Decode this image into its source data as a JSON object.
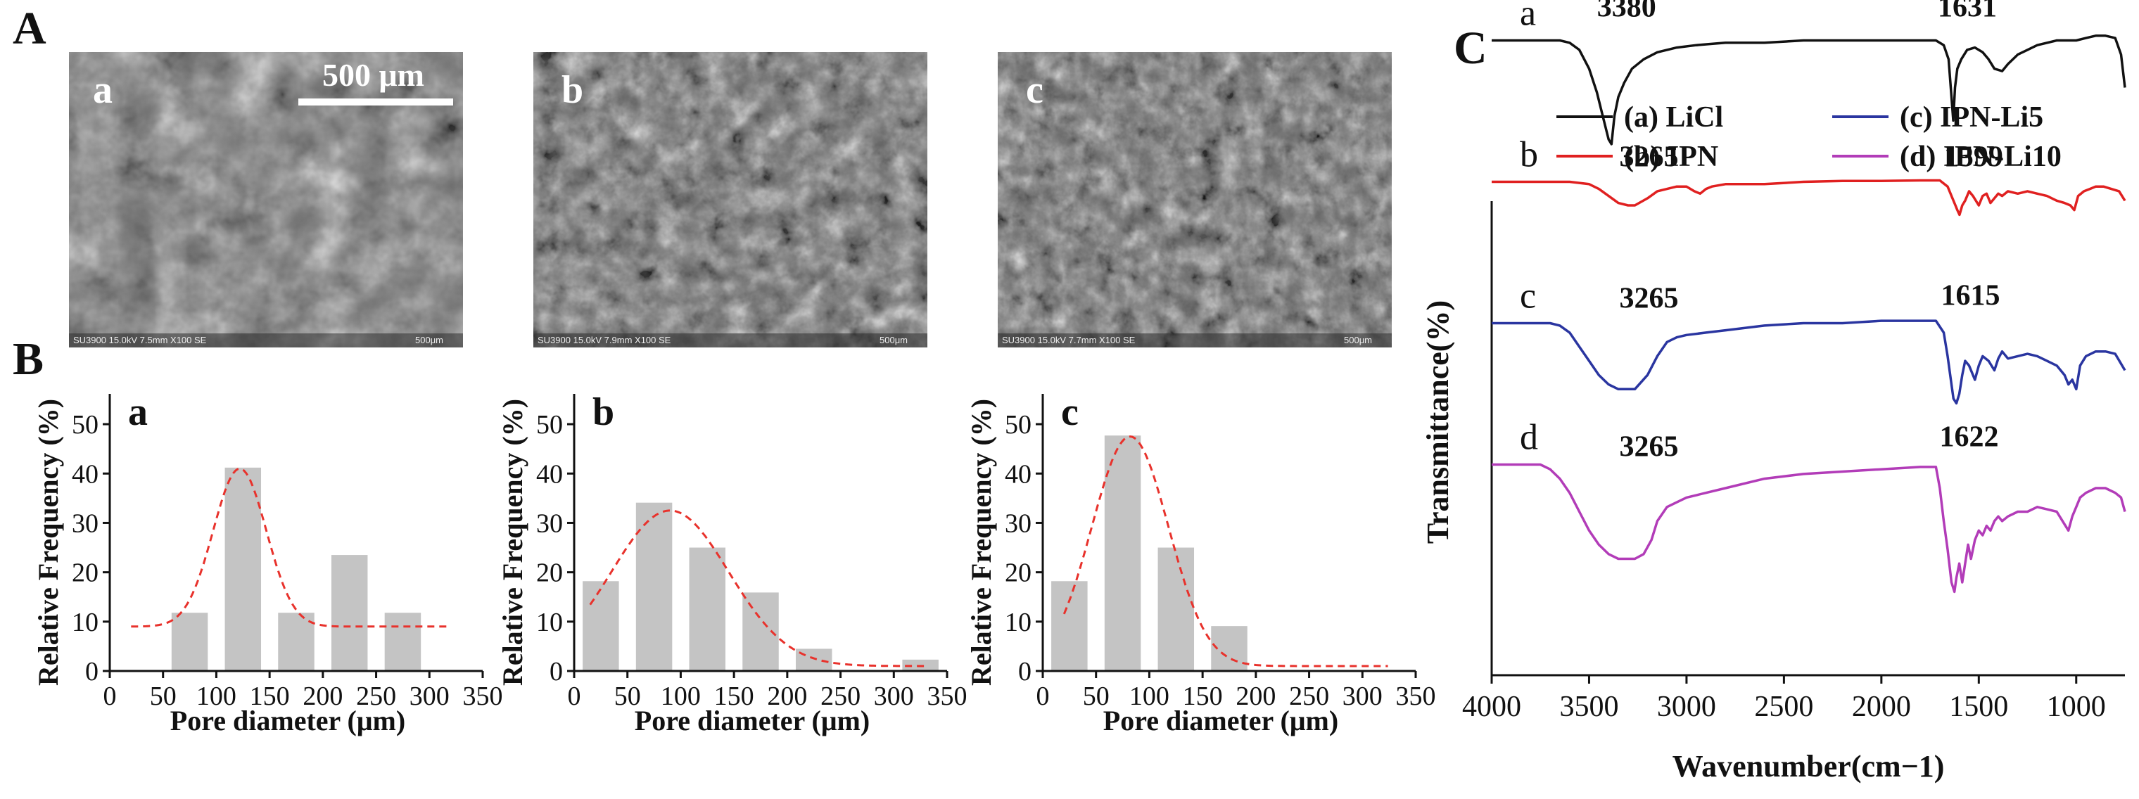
{
  "figure": {
    "panel_A_label": "A",
    "panel_B_label": "B",
    "panel_C_label": "C"
  },
  "sem_images": [
    {
      "letter": "a",
      "info": "SU3900 15.0kV 7.5mm X100 SE",
      "scale_text": "500μm"
    },
    {
      "letter": "b",
      "info": "SU3900 15.0kV 7.9mm X100 SE",
      "scale_text": "500μm"
    },
    {
      "letter": "c",
      "info": "SU3900 15.0kV 7.7mm X100 SE",
      "scale_text": "500μm"
    }
  ],
  "scale_bar_label": "500 μm",
  "colors": {
    "bar": "#c4c4c4",
    "fit": "#e8322c",
    "LiCl": "#111111",
    "IPN": "#e02020",
    "IPN-Li5": "#2a35a0",
    "IPN-Li10": "#b23cb8",
    "sem_bg": "#6f6f6f"
  },
  "chart_data": [
    {
      "type": "bar",
      "panel": "B-a",
      "letter": "a",
      "xlabel": "Pore diameter (μm)",
      "ylabel": "Relative Frequency (%)",
      "xlim": [
        0,
        350
      ],
      "ylim": [
        0,
        55
      ],
      "xticks": [
        0,
        50,
        100,
        150,
        200,
        250,
        300,
        350
      ],
      "yticks": [
        0,
        10,
        20,
        30,
        40,
        50
      ],
      "bin_width": 40,
      "x": [
        75,
        125,
        175,
        225,
        275
      ],
      "values": [
        11.8,
        41.2,
        11.8,
        23.5,
        11.8
      ],
      "fit": {
        "type": "gaussian",
        "baseline": 9,
        "amplitude": 32,
        "center": 122,
        "sigma": 25,
        "x_range": [
          20,
          320
        ]
      }
    },
    {
      "type": "bar",
      "panel": "B-b",
      "letter": "b",
      "xlabel": "Pore diameter (μm)",
      "ylabel": "Relative Frequency (%)",
      "xlim": [
        0,
        350
      ],
      "ylim": [
        0,
        55
      ],
      "xticks": [
        0,
        50,
        100,
        150,
        200,
        250,
        300,
        350
      ],
      "yticks": [
        0,
        10,
        20,
        30,
        40,
        50
      ],
      "bin_width": 40,
      "x": [
        25,
        75,
        125,
        175,
        225,
        325
      ],
      "values": [
        18.2,
        34.1,
        25.0,
        15.9,
        4.5,
        2.3
      ],
      "fit": {
        "type": "gaussian",
        "baseline": 1,
        "amplitude": 31.5,
        "center": 90,
        "sigma": 55,
        "x_range": [
          15,
          330
        ]
      }
    },
    {
      "type": "bar",
      "panel": "B-c",
      "letter": "c",
      "xlabel": "Pore diameter (μm)",
      "ylabel": "Relative Frequency (%)",
      "xlim": [
        0,
        350
      ],
      "ylim": [
        0,
        55
      ],
      "xticks": [
        0,
        50,
        100,
        150,
        200,
        250,
        300,
        350
      ],
      "yticks": [
        0,
        10,
        20,
        30,
        40,
        50
      ],
      "bin_width": 40,
      "x": [
        25,
        75,
        125,
        175
      ],
      "values": [
        18.2,
        47.7,
        25.0,
        9.1
      ],
      "fit": {
        "type": "gaussian",
        "baseline": 1,
        "amplitude": 46.5,
        "center": 82,
        "sigma": 36,
        "x_range": [
          20,
          325
        ]
      }
    },
    {
      "type": "line",
      "panel": "C",
      "xlabel": "Wavenumber(cm−1)",
      "ylabel": "Transmittance(%)",
      "xlim": [
        4000,
        750
      ],
      "xticks": [
        4000,
        3500,
        3000,
        2500,
        2000,
        1500,
        1000
      ],
      "legend_position": "top",
      "series": [
        {
          "name": "(a) LiCl",
          "letter": "a",
          "color_key": "LiCl",
          "offset": 75,
          "x": [
            4000,
            3750,
            3650,
            3600,
            3550,
            3500,
            3460,
            3430,
            3400,
            3385,
            3370,
            3350,
            3320,
            3280,
            3220,
            3150,
            3050,
            2950,
            2800,
            2600,
            2400,
            2200,
            2000,
            1800,
            1720,
            1680,
            1655,
            1640,
            1631,
            1622,
            1610,
            1590,
            1560,
            1520,
            1480,
            1450,
            1420,
            1380,
            1350,
            1300,
            1250,
            1200,
            1100,
            1000,
            950,
            900,
            850,
            800,
            770,
            750
          ],
          "y": [
            0,
            0,
            0,
            -0.5,
            -2,
            -6,
            -11,
            -16,
            -21,
            -22,
            -16,
            -12,
            -9,
            -6,
            -4,
            -2.5,
            -1.5,
            -1,
            -0.5,
            -0.5,
            0,
            0,
            0,
            0,
            0,
            -1,
            -4,
            -12,
            -17,
            -10,
            -6,
            -4,
            -2,
            -1.5,
            -2.5,
            -4,
            -6,
            -6.5,
            -5,
            -3,
            -2,
            -1,
            0,
            0,
            0.5,
            1,
            1,
            0.5,
            -3,
            -10
          ]
        },
        {
          "name": "(b) IPN",
          "letter": "b",
          "color_key": "IPN",
          "offset": 45,
          "x": [
            4000,
            3800,
            3700,
            3600,
            3500,
            3450,
            3400,
            3350,
            3300,
            3265,
            3200,
            3150,
            3100,
            3050,
            3000,
            2960,
            2930,
            2900,
            2870,
            2800,
            2600,
            2400,
            2200,
            2000,
            1800,
            1700,
            1660,
            1640,
            1620,
            1610,
            1599,
            1585,
            1570,
            1550,
            1530,
            1500,
            1480,
            1460,
            1440,
            1420,
            1400,
            1380,
            1350,
            1300,
            1250,
            1200,
            1150,
            1100,
            1060,
            1030,
            1010,
            990,
            960,
            930,
            900,
            860,
            820,
            780,
            750
          ],
          "y": [
            0,
            0,
            0,
            0,
            -0.5,
            -1.5,
            -3,
            -4.5,
            -5,
            -5,
            -3.5,
            -2,
            -1.5,
            -1,
            -1,
            -2,
            -2.5,
            -1.5,
            -1,
            -0.5,
            -0.5,
            0,
            0.2,
            0.2,
            0.3,
            0.3,
            -1,
            -3,
            -5,
            -6,
            -7,
            -5,
            -4,
            -2,
            -3,
            -5,
            -3,
            -2.5,
            -4.5,
            -3.5,
            -2.5,
            -3,
            -2,
            -2.5,
            -2,
            -2.5,
            -3,
            -4,
            -4.5,
            -5,
            -6,
            -3,
            -2,
            -1.5,
            -1,
            -1,
            -1.5,
            -2,
            -4
          ]
        },
        {
          "name": "(c) IPN-Li5",
          "letter": "c",
          "color_key": "IPN-Li5",
          "offset": 15,
          "x": [
            4000,
            3800,
            3700,
            3650,
            3600,
            3550,
            3500,
            3450,
            3400,
            3350,
            3300,
            3265,
            3200,
            3150,
            3100,
            3050,
            3000,
            2900,
            2800,
            2600,
            2400,
            2200,
            2000,
            1800,
            1720,
            1680,
            1660,
            1640,
            1630,
            1615,
            1600,
            1585,
            1570,
            1550,
            1520,
            1500,
            1480,
            1450,
            1420,
            1400,
            1380,
            1350,
            1300,
            1250,
            1200,
            1150,
            1100,
            1060,
            1040,
            1020,
            1000,
            980,
            950,
            900,
            850,
            800,
            750
          ],
          "y": [
            0,
            0,
            0,
            -0.5,
            -2,
            -5,
            -8,
            -11,
            -13,
            -14,
            -14,
            -14,
            -11,
            -7,
            -4,
            -3,
            -2.5,
            -2,
            -1.5,
            -0.5,
            0,
            0,
            0.5,
            0.5,
            0.5,
            -2,
            -7,
            -13,
            -16,
            -17,
            -15,
            -11,
            -8,
            -9,
            -12,
            -9,
            -7,
            -8,
            -10,
            -7.5,
            -6,
            -7.5,
            -7,
            -6.5,
            -7,
            -8,
            -9,
            -11,
            -13,
            -12,
            -14,
            -9,
            -7,
            -6,
            -6,
            -6.5,
            -10
          ]
        },
        {
          "name": "(d) IPN-Li10",
          "letter": "d",
          "color_key": "IPN-Li10",
          "offset": -15,
          "x": [
            4000,
            3750,
            3700,
            3650,
            3600,
            3550,
            3500,
            3450,
            3400,
            3350,
            3300,
            3265,
            3220,
            3180,
            3150,
            3100,
            3050,
            3000,
            2900,
            2800,
            2600,
            2400,
            2200,
            2000,
            1800,
            1720,
            1700,
            1680,
            1660,
            1640,
            1625,
            1615,
            1600,
            1585,
            1570,
            1555,
            1540,
            1520,
            1500,
            1480,
            1460,
            1440,
            1420,
            1400,
            1380,
            1350,
            1300,
            1250,
            1200,
            1150,
            1100,
            1070,
            1040,
            1020,
            1000,
            980,
            950,
            900,
            850,
            800,
            770,
            750
          ],
          "y": [
            0,
            0,
            -1,
            -3,
            -6,
            -10,
            -14,
            -17,
            -19,
            -20,
            -20,
            -20,
            -19,
            -16,
            -12,
            -9,
            -8,
            -7,
            -6,
            -5,
            -3,
            -2,
            -1.5,
            -1,
            -0.5,
            -0.5,
            -5,
            -12,
            -18,
            -25,
            -27,
            -24,
            -21,
            -25,
            -21,
            -17,
            -20,
            -16,
            -14,
            -15,
            -13,
            -14,
            -12,
            -11,
            -12,
            -11,
            -10,
            -10,
            -9,
            -9.5,
            -10,
            -12,
            -14,
            -11,
            -9,
            -7,
            -6,
            -5,
            -5,
            -6,
            -7,
            -10
          ]
        }
      ],
      "annotations": [
        {
          "text": "3380",
          "series": "a"
        },
        {
          "text": "1631",
          "series": "a"
        },
        {
          "text": "3265",
          "series": "b"
        },
        {
          "text": "1599",
          "series": "b"
        },
        {
          "text": "3265",
          "series": "c"
        },
        {
          "text": "1615",
          "series": "c"
        },
        {
          "text": "3265",
          "series": "d"
        },
        {
          "text": "1622",
          "series": "d"
        }
      ]
    }
  ]
}
